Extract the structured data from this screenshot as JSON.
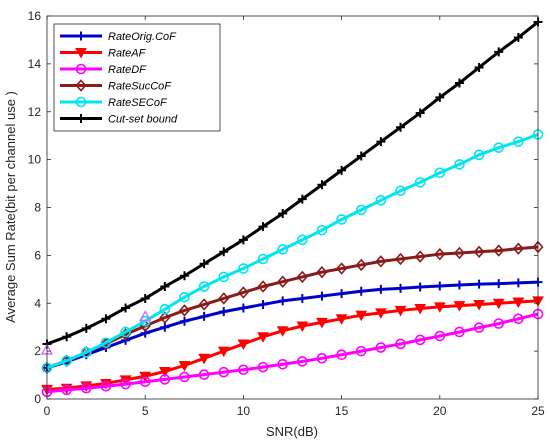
{
  "chart_data": {
    "type": "line",
    "xlabel": "SNR(dB)",
    "ylabel": "Average Sum Rate(bit per channel use )",
    "xlim": [
      0,
      25
    ],
    "ylim": [
      0,
      16
    ],
    "x_ticks": [
      "0",
      "5",
      "10",
      "15",
      "20",
      "25"
    ],
    "y_ticks": [
      "0",
      "2",
      "4",
      "6",
      "8",
      "10",
      "12",
      "14",
      "16"
    ],
    "grid": false,
    "legend_position": "top-left",
    "x": [
      0,
      1,
      2,
      3,
      4,
      5,
      6,
      7,
      8,
      9,
      10,
      11,
      12,
      13,
      14,
      15,
      16,
      17,
      18,
      19,
      20,
      21,
      22,
      23,
      24,
      25
    ],
    "series": [
      {
        "name": "RateOrig.CoF",
        "color": "#0000cc",
        "marker": "plus",
        "values": [
          1.3,
          1.55,
          1.85,
          2.15,
          2.45,
          2.75,
          3.0,
          3.25,
          3.45,
          3.65,
          3.8,
          3.95,
          4.1,
          4.2,
          4.3,
          4.4,
          4.5,
          4.58,
          4.62,
          4.68,
          4.72,
          4.76,
          4.8,
          4.82,
          4.85,
          4.88
        ]
      },
      {
        "name": "RateAF",
        "color": "#ff0000",
        "marker": "triangle-down",
        "values": [
          0.4,
          0.45,
          0.55,
          0.65,
          0.8,
          0.95,
          1.15,
          1.4,
          1.7,
          2.0,
          2.3,
          2.6,
          2.85,
          3.05,
          3.2,
          3.35,
          3.5,
          3.6,
          3.7,
          3.78,
          3.85,
          3.9,
          3.95,
          4.0,
          4.05,
          4.1
        ]
      },
      {
        "name": "RateDF",
        "color": "#ff00ff",
        "marker": "circle",
        "values": [
          0.3,
          0.38,
          0.45,
          0.53,
          0.62,
          0.72,
          0.82,
          0.92,
          1.02,
          1.12,
          1.22,
          1.33,
          1.45,
          1.57,
          1.7,
          1.85,
          2.0,
          2.15,
          2.3,
          2.47,
          2.63,
          2.8,
          2.98,
          3.15,
          3.35,
          3.55
        ]
      },
      {
        "name": "RateSucCoF",
        "color": "#8b1a1a",
        "marker": "diamond",
        "values": [
          1.3,
          1.6,
          1.95,
          2.3,
          2.7,
          3.05,
          3.4,
          3.7,
          3.95,
          4.2,
          4.45,
          4.7,
          4.9,
          5.1,
          5.3,
          5.45,
          5.6,
          5.75,
          5.85,
          5.95,
          6.05,
          6.1,
          6.15,
          6.2,
          6.28,
          6.35
        ]
      },
      {
        "name": "RateSECoF",
        "color": "#00e5ee",
        "marker": "circle",
        "values": [
          1.3,
          1.6,
          1.95,
          2.35,
          2.8,
          3.25,
          3.75,
          4.25,
          4.7,
          5.1,
          5.45,
          5.85,
          6.25,
          6.65,
          7.05,
          7.5,
          7.9,
          8.3,
          8.7,
          9.05,
          9.45,
          9.8,
          10.2,
          10.5,
          10.75,
          11.05
        ]
      },
      {
        "name": "Cut-set bound",
        "color": "#000000",
        "marker": "plus",
        "values": [
          2.3,
          2.6,
          2.95,
          3.35,
          3.8,
          4.2,
          4.7,
          5.15,
          5.65,
          6.15,
          6.65,
          7.2,
          7.75,
          8.35,
          8.95,
          9.55,
          10.15,
          10.75,
          11.35,
          11.95,
          12.6,
          13.2,
          13.85,
          14.5,
          15.1,
          15.75
        ]
      }
    ],
    "extra_points": [
      {
        "x": 0,
        "y": 2.05,
        "color": "#cc66ff",
        "marker": "triangle-up"
      },
      {
        "x": 5,
        "y": 3.45,
        "color": "#cc66ff",
        "marker": "triangle-up"
      }
    ]
  }
}
